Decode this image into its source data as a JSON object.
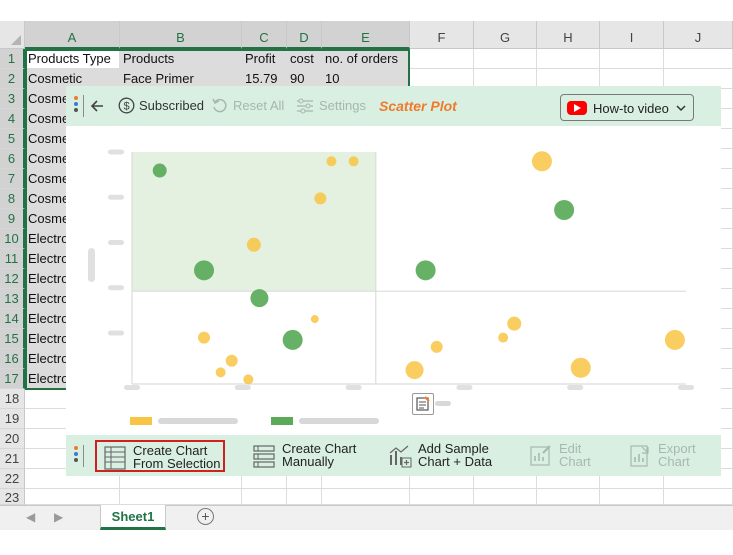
{
  "spreadsheet": {
    "columns": [
      "A",
      "B",
      "C",
      "D",
      "E",
      "F",
      "G",
      "H",
      "I",
      "J"
    ],
    "rows": [
      "1",
      "2",
      "3",
      "4",
      "5",
      "6",
      "7",
      "8",
      "9",
      "10",
      "11",
      "12",
      "13",
      "14",
      "15",
      "16",
      "17",
      "18",
      "19",
      "20",
      "21",
      "22",
      "23"
    ],
    "cells": {
      "r1": [
        "Products Type",
        "Products",
        "Profit",
        "cost",
        "no. of orders"
      ],
      "r2": [
        "Cosmetic",
        "Face Primer",
        "15.79",
        "90",
        "10"
      ],
      "col_a_partial": [
        "Cosme",
        "Cosme",
        "Cosme",
        "Cosme",
        "Cosme",
        "Cosme",
        "Cosme",
        "Electro",
        "Electro",
        "Electro",
        "Electro",
        "Electro",
        "Electro",
        "Electro",
        "Electro"
      ]
    },
    "sheet_tab": "Sheet1",
    "add_sheet": "+"
  },
  "panel": {
    "toolbar": {
      "subscribed_label": "Subscribed",
      "reset_label": "Reset All",
      "settings_label": "Settings",
      "chart_title": "Scatter Plot",
      "howto_label": "How-to video"
    },
    "bottom_toolbar": {
      "create_selection_line1": "Create Chart",
      "create_selection_line2": "From Selection",
      "create_manual_line1": "Create Chart",
      "create_manual_line2": "Manually",
      "add_sample_line1": "Add Sample",
      "add_sample_line2": "Chart + Data",
      "edit_line1": "Edit",
      "edit_line2": "Chart",
      "export_line1": "Export",
      "export_line2": "Chart"
    }
  },
  "colors": {
    "excel_green": "#217346",
    "toolbar_bg": "#d9efe2",
    "orange_title": "#f07a2a",
    "bubble_yellow": "#f8c444",
    "bubble_green": "#5aaa5a",
    "highlight_box": "#e4f1e1",
    "red_outline": "#d02020"
  },
  "chart_data": {
    "type": "scatter",
    "placeholder": true,
    "xlim": [
      0,
      100
    ],
    "ylim": [
      0,
      100
    ],
    "quadrant_divider": {
      "x": 44,
      "y": 40
    },
    "highlight_quadrant": "top-left",
    "series": [
      {
        "color": "#5aaa5a",
        "points": [
          {
            "x": 5,
            "y": 92,
            "size": 7
          },
          {
            "x": 13,
            "y": 49,
            "size": 10
          },
          {
            "x": 23,
            "y": 37,
            "size": 9
          },
          {
            "x": 29,
            "y": 19,
            "size": 10
          },
          {
            "x": 53,
            "y": 49,
            "size": 10
          },
          {
            "x": 78,
            "y": 75,
            "size": 10
          }
        ]
      },
      {
        "color": "#f8c444",
        "points": [
          {
            "x": 36,
            "y": 96,
            "size": 5
          },
          {
            "x": 40,
            "y": 96,
            "size": 5
          },
          {
            "x": 34,
            "y": 80,
            "size": 6
          },
          {
            "x": 22,
            "y": 60,
            "size": 7
          },
          {
            "x": 33,
            "y": 28,
            "size": 4
          },
          {
            "x": 13,
            "y": 20,
            "size": 6
          },
          {
            "x": 18,
            "y": 10,
            "size": 6
          },
          {
            "x": 16,
            "y": 5,
            "size": 5
          },
          {
            "x": 21,
            "y": 2,
            "size": 5
          },
          {
            "x": 74,
            "y": 96,
            "size": 10
          },
          {
            "x": 69,
            "y": 26,
            "size": 7
          },
          {
            "x": 67,
            "y": 20,
            "size": 5
          },
          {
            "x": 55,
            "y": 16,
            "size": 6
          },
          {
            "x": 51,
            "y": 6,
            "size": 9
          },
          {
            "x": 81,
            "y": 7,
            "size": 10
          },
          {
            "x": 98,
            "y": 19,
            "size": 10
          }
        ]
      }
    ]
  }
}
